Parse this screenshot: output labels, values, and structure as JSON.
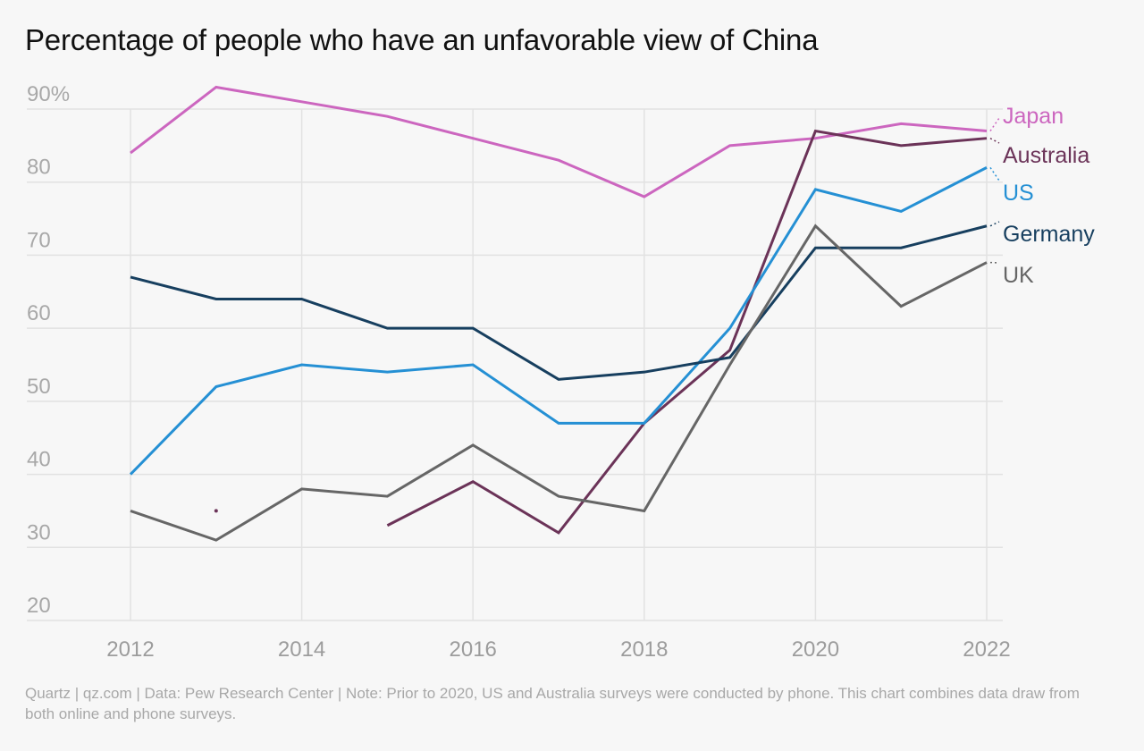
{
  "chart_data": {
    "type": "line",
    "title": "Percentage of people who have an unfavorable view of China",
    "xlabel": "",
    "ylabel": "",
    "x": [
      2012,
      2013,
      2014,
      2015,
      2016,
      2017,
      2018,
      2019,
      2020,
      2021,
      2022
    ],
    "xticks": [
      2012,
      2014,
      2016,
      2018,
      2020,
      2022
    ],
    "xtick_labels": [
      "2012",
      "2014",
      "2016",
      "2018",
      "2020",
      "2022"
    ],
    "ylim": [
      20,
      90
    ],
    "yticks": [
      20,
      30,
      40,
      50,
      60,
      70,
      80,
      90
    ],
    "ytick_labels": [
      "20",
      "30",
      "40",
      "50",
      "60",
      "70",
      "80",
      "90%"
    ],
    "grid": true,
    "legend": "direct labels at right end of lines",
    "series": [
      {
        "name": "Japan",
        "color": "#cc66bf",
        "values": [
          84,
          93,
          91,
          89,
          86,
          83,
          78,
          85,
          86,
          88,
          87
        ]
      },
      {
        "name": "Australia",
        "color": "#6b3358",
        "values": [
          null,
          35,
          null,
          33,
          39,
          32,
          47,
          57,
          87,
          85,
          86
        ]
      },
      {
        "name": "US",
        "color": "#2590d4",
        "values": [
          40,
          52,
          55,
          54,
          55,
          47,
          47,
          60,
          79,
          76,
          82
        ]
      },
      {
        "name": "Germany",
        "color": "#173f5f",
        "values": [
          67,
          64,
          64,
          60,
          60,
          53,
          54,
          56,
          71,
          71,
          74
        ]
      },
      {
        "name": "UK",
        "color": "#666666",
        "values": [
          35,
          31,
          38,
          37,
          44,
          37,
          35,
          55,
          74,
          63,
          69
        ]
      }
    ]
  },
  "footer": "Quartz | qz.com | Data: Pew Research Center | Note: Prior to 2020, US and Australia surveys were conducted by phone. This chart combines data draw from both online and phone surveys."
}
